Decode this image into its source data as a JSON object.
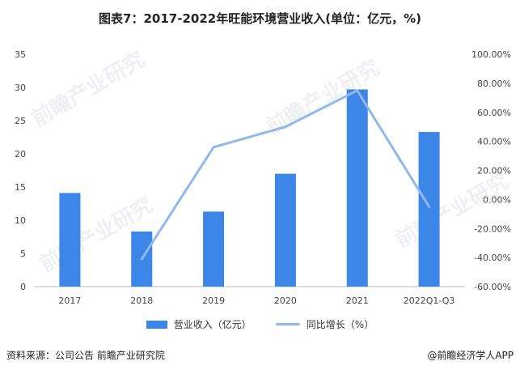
{
  "title": "图表7：2017-2022年旺能环境营业收入(单位：亿元，%)",
  "watermark": "前瞻产业研究",
  "colors": {
    "bar": "#3b86e6",
    "line": "#8fb9ec",
    "grid": "#e3e3e3",
    "axis": "#bbbbbb"
  },
  "chart_data": {
    "type": "bar",
    "categories": [
      "2017",
      "2018",
      "2019",
      "2020",
      "2021",
      "2022Q1-Q3"
    ],
    "series": [
      {
        "name": "营业收入（亿元）",
        "type": "bar",
        "axis": "left",
        "values": [
          14.1,
          8.3,
          11.3,
          17.0,
          29.7,
          23.3
        ]
      },
      {
        "name": "同比增长（%）",
        "type": "line",
        "axis": "right",
        "values": [
          null,
          -41.0,
          36.0,
          50.0,
          75.0,
          -5.0
        ]
      }
    ],
    "ylim": [
      0,
      35
    ],
    "y_ticks": [
      "0",
      "5",
      "10",
      "15",
      "20",
      "25",
      "30",
      "35"
    ],
    "y2lim": [
      -60,
      100
    ],
    "y2_ticks": [
      "-60.00%",
      "-40.00%",
      "-20.00%",
      "0.00%",
      "20.00%",
      "40.00%",
      "60.00%",
      "80.00%",
      "100.00%"
    ],
    "grid": false,
    "legend_position": "bottom"
  },
  "footer": {
    "source": "资料来源：公司公告 前瞻产业研究院",
    "brand": "@前瞻经济学人APP"
  }
}
